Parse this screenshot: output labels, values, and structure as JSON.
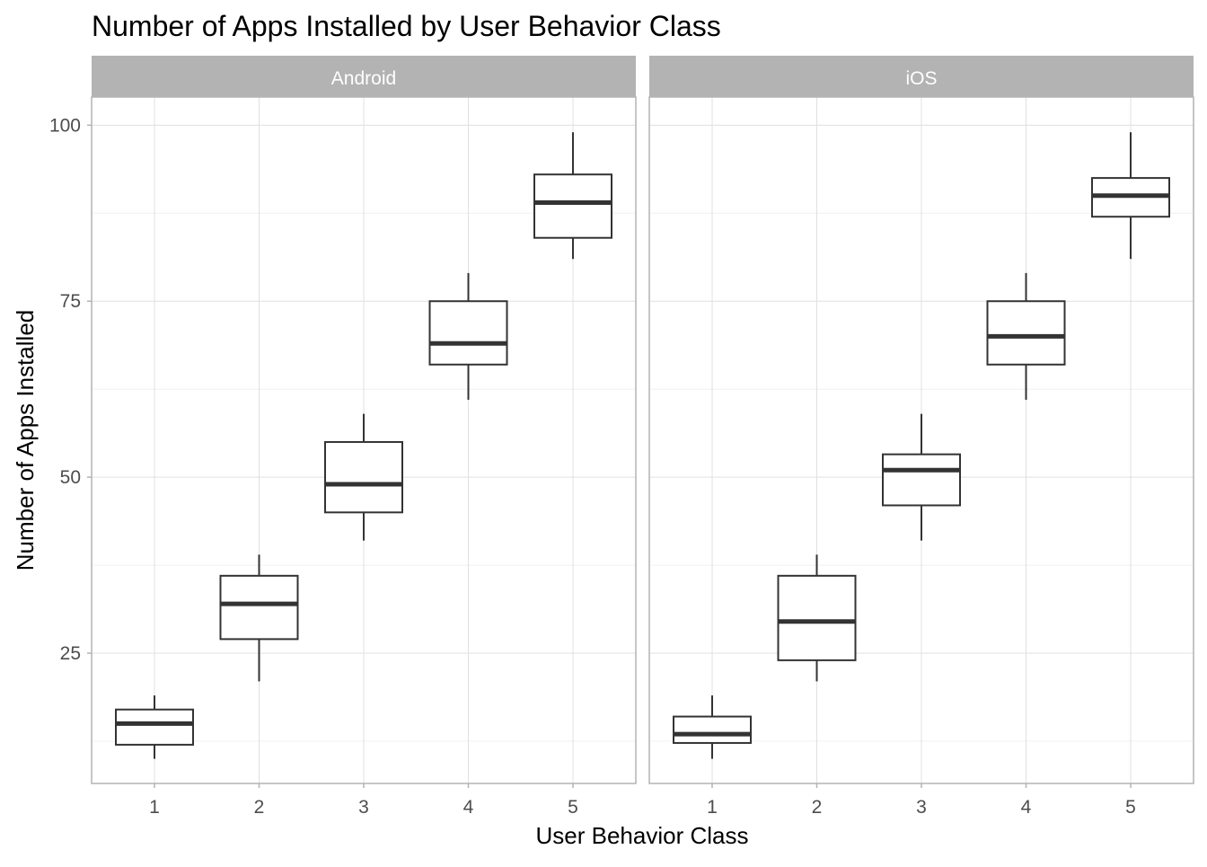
{
  "chart_data": {
    "type": "boxplot",
    "title": "Number of Apps Installed by User Behavior Class",
    "xlabel": "User Behavior Class",
    "ylabel": "Number of Apps Installed",
    "categories": [
      "1",
      "2",
      "3",
      "4",
      "5"
    ],
    "y_ticks": [
      "25",
      "50",
      "75",
      "100"
    ],
    "ylim": [
      6.5,
      104
    ],
    "grid": true,
    "colors": {
      "strip": "#b3b3b3",
      "box_stroke": "#333333",
      "grid_major": "#e0e0e0",
      "grid_minor": "#f0f0f0",
      "axis": "#b3b3b3"
    },
    "panels": [
      {
        "label": "Android",
        "boxes": [
          {
            "x": "1",
            "min": 10,
            "q1": 12,
            "median": 15,
            "q3": 17,
            "max": 19
          },
          {
            "x": "2",
            "min": 21,
            "q1": 27,
            "median": 32,
            "q3": 36,
            "max": 39
          },
          {
            "x": "3",
            "min": 41,
            "q1": 45,
            "median": 49,
            "q3": 55,
            "max": 59
          },
          {
            "x": "4",
            "min": 61,
            "q1": 66,
            "median": 69,
            "q3": 75,
            "max": 79
          },
          {
            "x": "5",
            "min": 81,
            "q1": 84,
            "median": 89,
            "q3": 93,
            "max": 99
          }
        ]
      },
      {
        "label": "iOS",
        "boxes": [
          {
            "x": "1",
            "min": 10,
            "q1": 12.25,
            "median": 13.5,
            "q3": 16,
            "max": 19
          },
          {
            "x": "2",
            "min": 21,
            "q1": 24,
            "median": 29.5,
            "q3": 36,
            "max": 39
          },
          {
            "x": "3",
            "min": 41,
            "q1": 46,
            "median": 51,
            "q3": 53.25,
            "max": 59
          },
          {
            "x": "4",
            "min": 61,
            "q1": 66,
            "median": 70,
            "q3": 75,
            "max": 79
          },
          {
            "x": "5",
            "min": 81,
            "q1": 87,
            "median": 90,
            "q3": 92.5,
            "max": 99
          }
        ]
      }
    ]
  }
}
